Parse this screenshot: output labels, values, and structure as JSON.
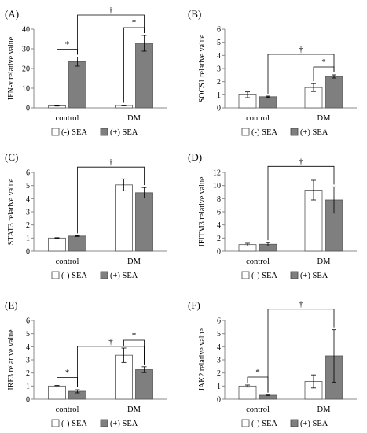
{
  "legend": {
    "left_label": "(-) SEA",
    "right_label": "(+) SEA",
    "left_color": "#ffffff",
    "right_color": "#7f7f7f"
  },
  "chart_data": [
    {
      "type": "bar",
      "panel": "(A)",
      "ylabel": "IFN-γ relative value",
      "categories": [
        "control",
        "DM"
      ],
      "ylim": [
        0,
        40
      ],
      "yticks": [
        0,
        10,
        20,
        30,
        40
      ],
      "series": [
        {
          "name": "(-) SEA",
          "values": [
            1,
            1.2
          ],
          "errors": [
            0.1,
            0.2
          ]
        },
        {
          "name": "(+) SEA",
          "values": [
            23.5,
            32.8
          ],
          "errors": [
            2.3,
            4.0
          ]
        }
      ],
      "annotations": [
        {
          "text": "*",
          "between": "control (-) SEA vs (+) SEA"
        },
        {
          "text": "*",
          "between": "DM (-) SEA vs (+) SEA"
        },
        {
          "text": "†",
          "between": "control (+) SEA vs DM (+) SEA"
        }
      ]
    },
    {
      "type": "bar",
      "panel": "(B)",
      "ylabel": "SOCS1 relative value",
      "categories": [
        "control",
        "DM"
      ],
      "ylim": [
        0,
        6
      ],
      "yticks": [
        0,
        1,
        2,
        3,
        4,
        5,
        6
      ],
      "series": [
        {
          "name": "(-) SEA",
          "values": [
            1.0,
            1.55
          ],
          "errors": [
            0.22,
            0.3
          ]
        },
        {
          "name": "(+) SEA",
          "values": [
            0.85,
            2.4
          ],
          "errors": [
            0.05,
            0.12
          ]
        }
      ],
      "annotations": [
        {
          "text": "*",
          "between": "DM (-) SEA vs (+) SEA"
        },
        {
          "text": "†",
          "between": "control (+) SEA vs DM (+) SEA"
        }
      ]
    },
    {
      "type": "bar",
      "panel": "(C)",
      "ylabel": "STAT3 relative value",
      "categories": [
        "control",
        "DM"
      ],
      "ylim": [
        0,
        6
      ],
      "yticks": [
        0,
        1,
        2,
        3,
        4,
        5,
        6
      ],
      "series": [
        {
          "name": "(-) SEA",
          "values": [
            1.0,
            5.05
          ],
          "errors": [
            0.03,
            0.45
          ]
        },
        {
          "name": "(+) SEA",
          "values": [
            1.15,
            4.45
          ],
          "errors": [
            0.03,
            0.4
          ]
        }
      ],
      "annotations": [
        {
          "text": "†",
          "between": "control (+) SEA vs DM (+) SEA"
        }
      ]
    },
    {
      "type": "bar",
      "panel": "(D)",
      "ylabel": "IFITM3 relative value",
      "categories": [
        "control",
        "DM"
      ],
      "ylim": [
        0,
        12
      ],
      "yticks": [
        0,
        2,
        4,
        6,
        8,
        10,
        12
      ],
      "series": [
        {
          "name": "(-) SEA",
          "values": [
            1.0,
            9.3
          ],
          "errors": [
            0.2,
            1.5
          ]
        },
        {
          "name": "(+) SEA",
          "values": [
            1.05,
            7.8
          ],
          "errors": [
            0.25,
            2.0
          ]
        }
      ],
      "annotations": [
        {
          "text": "†",
          "between": "control (+) SEA vs DM (+) SEA"
        }
      ]
    },
    {
      "type": "bar",
      "panel": "(E)",
      "ylabel": "IRF3 relative value",
      "categories": [
        "control",
        "DM"
      ],
      "ylim": [
        0,
        6
      ],
      "yticks": [
        0,
        1,
        2,
        3,
        4,
        5,
        6
      ],
      "series": [
        {
          "name": "(-) SEA",
          "values": [
            1.0,
            3.35
          ],
          "errors": [
            0.05,
            0.55
          ]
        },
        {
          "name": "(+) SEA",
          "values": [
            0.6,
            2.25
          ],
          "errors": [
            0.12,
            0.22
          ]
        }
      ],
      "annotations": [
        {
          "text": "*",
          "between": "control (-) SEA vs (+) SEA"
        },
        {
          "text": "*",
          "between": "DM (-) SEA vs (+) SEA"
        },
        {
          "text": "†",
          "between": "control (+) SEA vs DM (+) SEA"
        }
      ]
    },
    {
      "type": "bar",
      "panel": "(F)",
      "ylabel": "JAK2 relative value",
      "categories": [
        "control",
        "DM"
      ],
      "ylim": [
        0,
        6
      ],
      "yticks": [
        0,
        1,
        2,
        3,
        4,
        5,
        6
      ],
      "series": [
        {
          "name": "(-) SEA",
          "values": [
            1.0,
            1.35
          ],
          "errors": [
            0.08,
            0.5
          ]
        },
        {
          "name": "(+) SEA",
          "values": [
            0.3,
            3.3
          ],
          "errors": [
            0.02,
            2.0
          ]
        }
      ],
      "annotations": [
        {
          "text": "*",
          "between": "control (-) SEA vs (+) SEA"
        },
        {
          "text": "†",
          "between": "control (+) SEA vs DM (+) SEA"
        }
      ]
    }
  ]
}
